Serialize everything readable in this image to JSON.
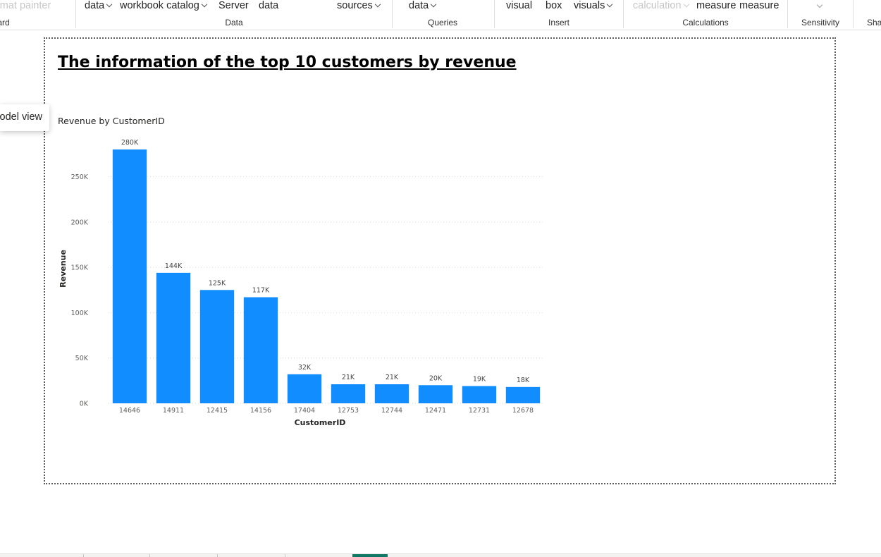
{
  "ribbon": {
    "items": [
      {
        "label": "Format painter",
        "dropdown": false,
        "disabled": true
      },
      {
        "label": "data",
        "dropdown": true,
        "disabled": false
      },
      {
        "label": "workbook catalog",
        "dropdown": true,
        "disabled": false
      },
      {
        "label": "Server",
        "dropdown": false,
        "disabled": false
      },
      {
        "label": "data",
        "dropdown": false,
        "disabled": false
      },
      {
        "label": "sources",
        "dropdown": true,
        "disabled": false
      },
      {
        "label": "data",
        "dropdown": true,
        "disabled": false
      },
      {
        "label": "visual",
        "dropdown": false,
        "disabled": false
      },
      {
        "label": "box",
        "dropdown": false,
        "disabled": false
      },
      {
        "label": "visuals",
        "dropdown": true,
        "disabled": false
      },
      {
        "label": "calculation",
        "dropdown": true,
        "disabled": true
      },
      {
        "label": "measure",
        "dropdown": false,
        "disabled": false
      },
      {
        "label": "measure",
        "dropdown": false,
        "disabled": false
      }
    ],
    "groups": [
      "Clipboard",
      "Data",
      "Queries",
      "Insert",
      "Calculations",
      "Sensitivity",
      "Share"
    ]
  },
  "tooltip": {
    "label": "Model view"
  },
  "page_title": "The information of the top 10 customers by revenue",
  "chart_data": {
    "type": "bar",
    "title": "Revenue by CustomerID",
    "xlabel": "CustomerID",
    "ylabel": "Revenue",
    "categories": [
      "14646",
      "14911",
      "12415",
      "14156",
      "17404",
      "12753",
      "12744",
      "12471",
      "12731",
      "12678"
    ],
    "values": [
      280000,
      144000,
      125000,
      117000,
      32000,
      21000,
      21000,
      20000,
      19000,
      18000
    ],
    "data_labels": [
      "280K",
      "144K",
      "125K",
      "117K",
      "32K",
      "21K",
      "21K",
      "20K",
      "19K",
      "18K"
    ],
    "yticks": [
      0,
      50000,
      100000,
      150000,
      200000,
      250000
    ],
    "ytick_labels": [
      "0K",
      "50K",
      "100K",
      "150K",
      "200K",
      "250K"
    ],
    "ylim": [
      0,
      280000
    ],
    "grid": true,
    "color": "#118DFF"
  }
}
